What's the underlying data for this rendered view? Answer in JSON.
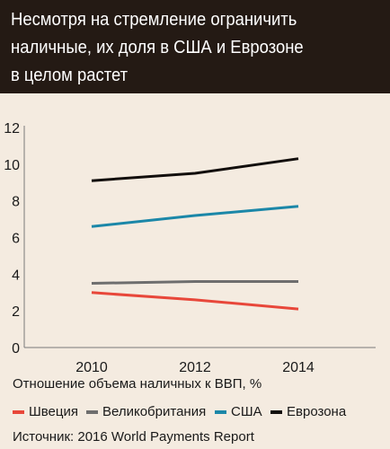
{
  "header": {
    "title_lines": [
      "Несмотря на стремление ограничить",
      "наличные, их доля в США и Еврозоне",
      "в целом растет"
    ]
  },
  "chart_data": {
    "type": "line",
    "title": "Несмотря на стремление ограничить наличные, их доля в США и Еврозоне в целом растет",
    "xlabel": "",
    "ylabel": "",
    "x": [
      2010,
      2012,
      2014
    ],
    "x_ticks": [
      "2010",
      "2012",
      "2014"
    ],
    "ylim": [
      0,
      12
    ],
    "y_ticks": [
      "0",
      "2",
      "4",
      "6",
      "8",
      "10",
      "12"
    ],
    "grid": false,
    "legend_position": "bottom",
    "series": [
      {
        "name": "Швеция",
        "color": "#e8473a",
        "values": [
          3.0,
          2.6,
          2.1
        ]
      },
      {
        "name": "Великобритания",
        "color": "#6e6e6e",
        "values": [
          3.5,
          3.6,
          3.6
        ]
      },
      {
        "name": "США",
        "color": "#1b87a8",
        "values": [
          6.6,
          7.2,
          7.7
        ]
      },
      {
        "name": "Еврозона",
        "color": "#120e0c",
        "values": [
          9.1,
          9.5,
          10.3
        ]
      }
    ]
  },
  "axis_note": "Отношение объема наличных к ВВП, %",
  "source": "Источник: 2016 World Payments Report"
}
